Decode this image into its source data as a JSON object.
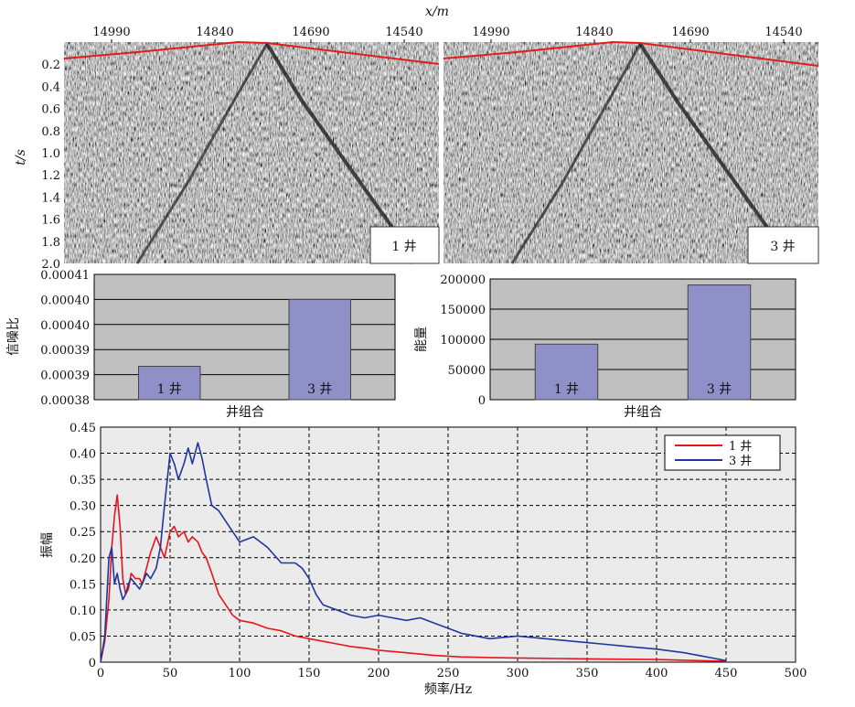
{
  "chart_data": [
    {
      "type": "heatmap",
      "title": "",
      "xlabel": "x/m",
      "ylabel": "t/s",
      "x_ticks": [
        "14990",
        "14840",
        "14690",
        "14540"
      ],
      "y_ticks": [
        "0.2",
        "0.4",
        "0.6",
        "0.8",
        "1.0",
        "1.2",
        "1.4",
        "1.6",
        "1.8",
        "2.0"
      ],
      "panels": [
        {
          "label": "1 井"
        },
        {
          "label": "3 井"
        }
      ],
      "colors": {
        "first_break_line": "#e31b1b"
      }
    },
    {
      "type": "bar",
      "categories": [
        "1 井",
        "3 井"
      ],
      "values": [
        0.000388,
        0.000404
      ],
      "xlabel": "井组合",
      "ylabel": "信噪比",
      "ylim": [
        0.00038,
        0.00041
      ],
      "y_tick_labels": [
        "0.00041",
        "0.00040",
        "0.00040",
        "0.00039",
        "0.00039",
        "0.00038"
      ],
      "colors": {
        "bar": "#8f90c8",
        "background": "#c0c0c0"
      }
    },
    {
      "type": "bar",
      "categories": [
        "1 井",
        "3 井"
      ],
      "values": [
        92000,
        190000
      ],
      "xlabel": "井组合",
      "ylabel": "能量",
      "ylim": [
        0,
        200000
      ],
      "y_tick_labels": [
        "200000",
        "150000",
        "100000",
        "50000",
        "0"
      ],
      "colors": {
        "bar": "#8f90c8",
        "background": "#c0c0c0"
      }
    },
    {
      "type": "line",
      "xlabel": "频率/Hz",
      "ylabel": "振幅",
      "xlim": [
        0,
        500
      ],
      "ylim": [
        0,
        0.45
      ],
      "x_ticks": [
        0,
        50,
        100,
        150,
        200,
        250,
        300,
        350,
        400,
        450,
        500
      ],
      "y_ticks": [
        "0",
        "0.05",
        "0.10",
        "0.15",
        "0.20",
        "0.25",
        "0.30",
        "0.35",
        "0.40",
        "0.45"
      ],
      "grid": true,
      "legend": "top-right",
      "series": [
        {
          "name": "1 井",
          "color": "#e8141c",
          "x": [
            0,
            3,
            6,
            8,
            10,
            12,
            14,
            16,
            18,
            20,
            22,
            25,
            28,
            30,
            33,
            36,
            40,
            43,
            46,
            50,
            53,
            56,
            60,
            63,
            66,
            70,
            73,
            76,
            80,
            85,
            90,
            95,
            100,
            110,
            120,
            130,
            140,
            150,
            160,
            170,
            180,
            190,
            200,
            220,
            240,
            260,
            280,
            300,
            330,
            360,
            400,
            430,
            450
          ],
          "y": [
            0.0,
            0.04,
            0.12,
            0.22,
            0.28,
            0.32,
            0.26,
            0.16,
            0.13,
            0.14,
            0.17,
            0.16,
            0.16,
            0.15,
            0.18,
            0.21,
            0.24,
            0.22,
            0.2,
            0.25,
            0.26,
            0.24,
            0.25,
            0.23,
            0.24,
            0.23,
            0.21,
            0.2,
            0.17,
            0.13,
            0.11,
            0.09,
            0.08,
            0.075,
            0.065,
            0.06,
            0.05,
            0.045,
            0.04,
            0.035,
            0.03,
            0.027,
            0.023,
            0.018,
            0.013,
            0.01,
            0.009,
            0.008,
            0.007,
            0.006,
            0.005,
            0.003,
            0.002
          ]
        },
        {
          "name": "3 井",
          "color": "#1f36a0",
          "x": [
            0,
            3,
            6,
            8,
            10,
            12,
            14,
            16,
            18,
            20,
            22,
            25,
            28,
            30,
            33,
            36,
            40,
            43,
            46,
            50,
            53,
            56,
            60,
            63,
            66,
            70,
            73,
            76,
            80,
            85,
            90,
            95,
            100,
            110,
            120,
            130,
            140,
            145,
            150,
            155,
            160,
            170,
            180,
            190,
            200,
            210,
            220,
            230,
            240,
            250,
            260,
            280,
            300,
            320,
            340,
            360,
            380,
            400,
            420,
            440,
            450
          ],
          "y": [
            0.0,
            0.05,
            0.2,
            0.22,
            0.15,
            0.17,
            0.14,
            0.12,
            0.13,
            0.15,
            0.16,
            0.15,
            0.14,
            0.15,
            0.17,
            0.16,
            0.18,
            0.22,
            0.3,
            0.4,
            0.38,
            0.35,
            0.38,
            0.41,
            0.38,
            0.42,
            0.39,
            0.35,
            0.3,
            0.29,
            0.27,
            0.25,
            0.23,
            0.24,
            0.22,
            0.19,
            0.19,
            0.18,
            0.16,
            0.13,
            0.11,
            0.1,
            0.09,
            0.085,
            0.09,
            0.085,
            0.08,
            0.085,
            0.075,
            0.065,
            0.055,
            0.045,
            0.05,
            0.045,
            0.04,
            0.035,
            0.03,
            0.025,
            0.018,
            0.008,
            0.003
          ]
        }
      ]
    }
  ]
}
